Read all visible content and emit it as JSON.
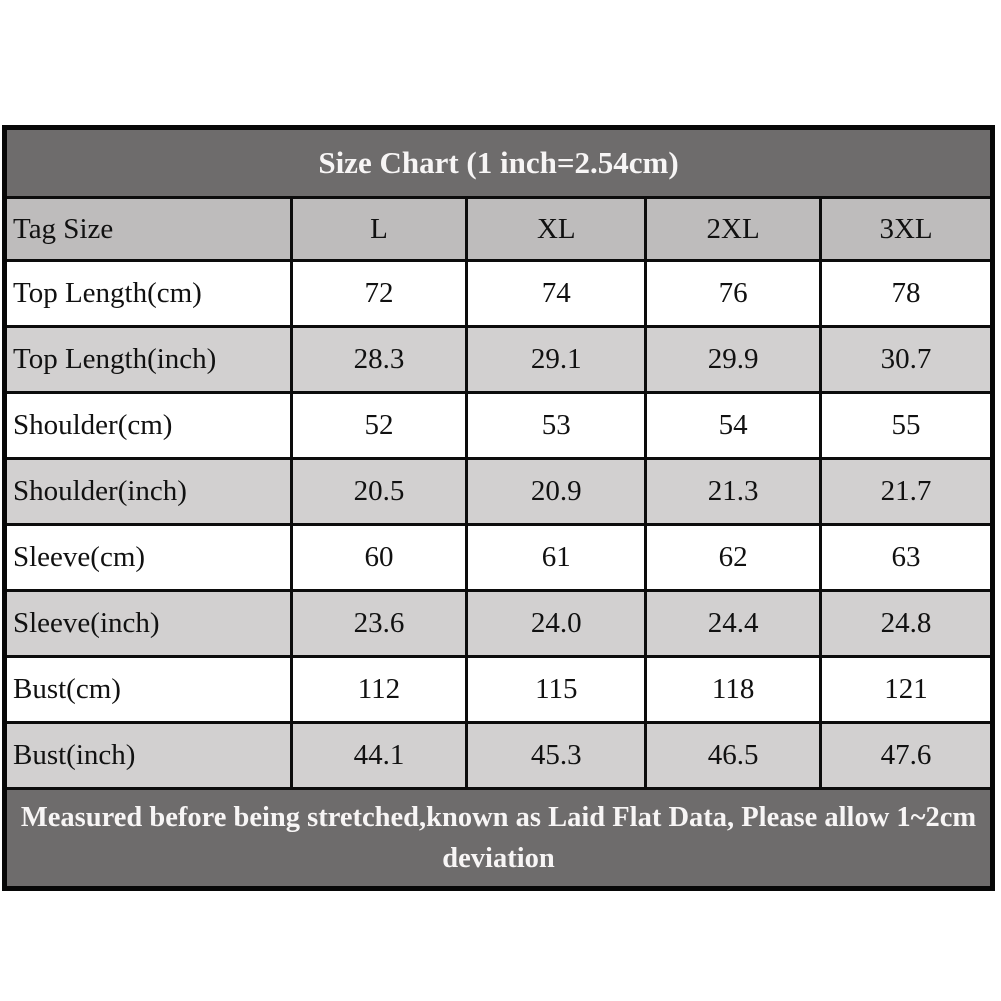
{
  "chart_data": {
    "type": "table",
    "title": "Size Chart (1 inch=2.54cm)",
    "columns": [
      "Tag Size",
      "L",
      "XL",
      "2XL",
      "3XL"
    ],
    "rows": [
      {
        "label": "Top Length(cm)",
        "values": [
          "72",
          "74",
          "76",
          "78"
        ]
      },
      {
        "label": "Top Length(inch)",
        "values": [
          "28.3",
          "29.1",
          "29.9",
          "30.7"
        ]
      },
      {
        "label": "Shoulder(cm)",
        "values": [
          "52",
          "53",
          "54",
          "55"
        ]
      },
      {
        "label": "Shoulder(inch)",
        "values": [
          "20.5",
          "20.9",
          "21.3",
          "21.7"
        ]
      },
      {
        "label": "Sleeve(cm)",
        "values": [
          "60",
          "61",
          "62",
          "63"
        ]
      },
      {
        "label": "Sleeve(inch)",
        "values": [
          "23.6",
          "24.0",
          "24.4",
          "24.8"
        ]
      },
      {
        "label": "Bust(cm)",
        "values": [
          "112",
          "115",
          "118",
          "121"
        ]
      },
      {
        "label": "Bust(inch)",
        "values": [
          "44.1",
          "45.3",
          "46.5",
          "47.6"
        ]
      }
    ],
    "footer": "Measured before being stretched,known as Laid Flat Data, Please allow 1~2cm deviation",
    "layout": {
      "grid": "on",
      "row_striping": "white / light-gray alternating",
      "title_position": "top merged row",
      "footer_position": "bottom merged row"
    }
  },
  "colors": {
    "title_bar_bg": "#6E6C6C",
    "footer_bar_bg": "#6E6C6C",
    "column_header_bg": "#BEBCBC",
    "alt_row_bg": "#D2D0D0",
    "plain_row_bg": "#FFFFFF",
    "border": "#0C0C0C",
    "title_text": "#F7F5F5",
    "body_text": "#111111"
  }
}
